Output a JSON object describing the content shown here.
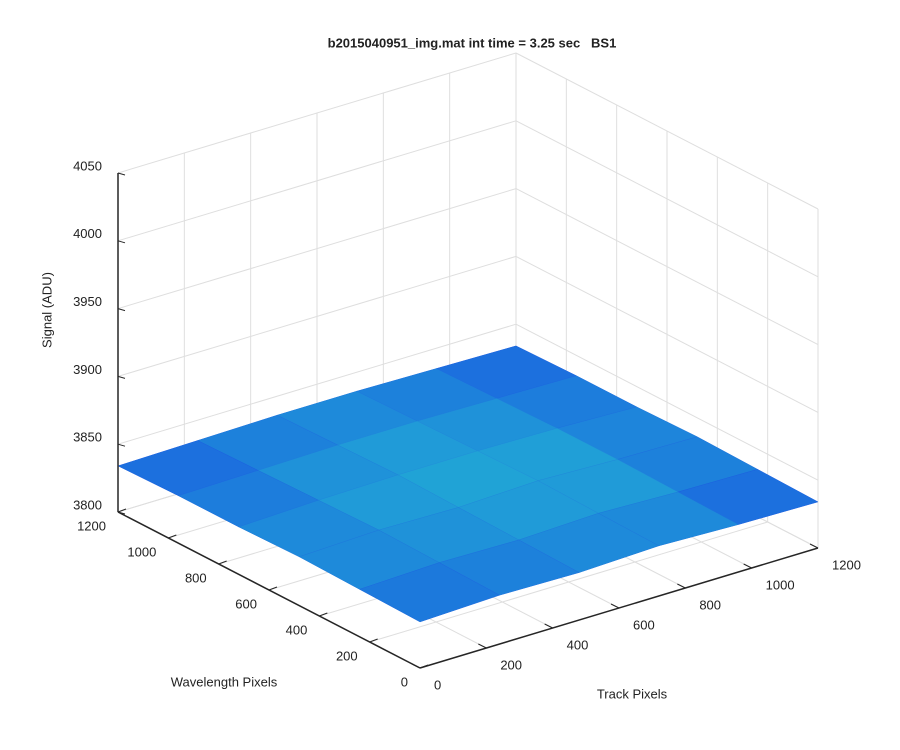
{
  "chart_data": {
    "type": "surface",
    "title": "b2015040951_img.mat int time = 3.25 sec   BS1",
    "x_label": "Track Pixels",
    "y_label": "Wavelength Pixels",
    "z_label": "Signal (ADU)",
    "x": [
      0,
      240,
      480,
      720,
      960,
      1200
    ],
    "y": [
      0,
      240,
      480,
      720,
      960,
      1200
    ],
    "z": [
      [
        3834,
        3836,
        3835,
        3837,
        3835,
        3834
      ],
      [
        3835,
        3837,
        3836,
        3838,
        3836,
        3835
      ],
      [
        3836,
        3838,
        3837,
        3839,
        3837,
        3836
      ],
      [
        3835,
        3837,
        3838,
        3838,
        3837,
        3835
      ],
      [
        3835,
        3836,
        3837,
        3837,
        3836,
        3835
      ],
      [
        3834,
        3835,
        3836,
        3836,
        3835,
        3834
      ]
    ],
    "xlim": [
      0,
      1200
    ],
    "ylim": [
      0,
      1200
    ],
    "zlim": [
      3800,
      4050
    ],
    "xticks": [
      0,
      200,
      400,
      600,
      800,
      1000,
      1200
    ],
    "yticks": [
      0,
      200,
      400,
      600,
      800,
      1000,
      1200
    ],
    "zticks": [
      3800,
      3850,
      3900,
      3950,
      4000,
      4050
    ],
    "grid": true,
    "colormap": [
      "#1a5fe0",
      "#22b4d4"
    ]
  }
}
